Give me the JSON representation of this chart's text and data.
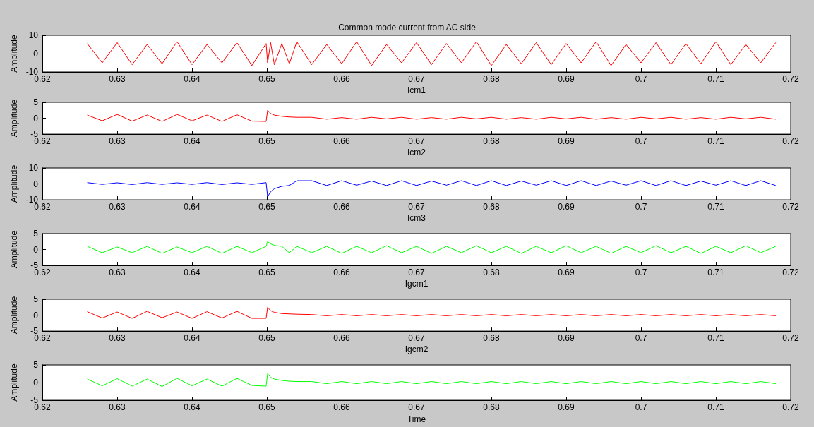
{
  "chart_data": [
    {
      "type": "line",
      "title": "Common mode current from AC side",
      "xlabel": "Icm1",
      "ylabel": "Amplitude",
      "marker": "none",
      "xlim": [
        0.62,
        0.72
      ],
      "xticks": [
        0.62,
        0.63,
        0.64,
        0.65,
        0.66,
        0.67,
        0.68,
        0.69,
        0.7,
        0.71,
        0.72
      ],
      "ylim": [
        -10,
        10
      ],
      "yticks": [
        -10,
        0,
        10
      ],
      "x": [
        0.626,
        0.628,
        0.63,
        0.632,
        0.634,
        0.636,
        0.638,
        0.64,
        0.642,
        0.644,
        0.646,
        0.648,
        0.6499,
        0.6501,
        0.6505,
        0.651,
        0.652,
        0.653,
        0.654,
        0.656,
        0.658,
        0.66,
        0.662,
        0.664,
        0.666,
        0.668,
        0.67,
        0.672,
        0.674,
        0.676,
        0.678,
        0.68,
        0.682,
        0.684,
        0.686,
        0.688,
        0.69,
        0.692,
        0.694,
        0.696,
        0.698,
        0.7,
        0.702,
        0.704,
        0.706,
        0.708,
        0.71,
        0.712,
        0.714,
        0.716,
        0.718
      ],
      "series": [
        {
          "color": "#ff0000",
          "values": [
            5.5,
            -5,
            6,
            -6,
            5,
            -5.5,
            6.5,
            -6,
            5,
            -5,
            6,
            -6.5,
            5.5,
            -5,
            6,
            -6,
            5.5,
            -5.5,
            6.5,
            -6,
            5,
            -5.5,
            6.5,
            -6.5,
            5,
            -5,
            6,
            -6,
            5.5,
            -5,
            6.5,
            -6.5,
            5,
            -5.5,
            6,
            -6,
            5.5,
            -5,
            6.5,
            -6.5,
            5,
            -5,
            6,
            -6,
            5.5,
            -5.5,
            6.5,
            -6,
            5,
            -5,
            6
          ]
        }
      ]
    },
    {
      "type": "line",
      "xlabel": "Icm2",
      "ylabel": "Amplitude",
      "marker": "none",
      "xlim": [
        0.62,
        0.72
      ],
      "xticks": [
        0.62,
        0.63,
        0.64,
        0.65,
        0.66,
        0.67,
        0.68,
        0.69,
        0.7,
        0.71,
        0.72
      ],
      "ylim": [
        -5,
        5
      ],
      "yticks": [
        -5,
        0,
        5
      ],
      "x": [
        0.626,
        0.628,
        0.63,
        0.632,
        0.634,
        0.636,
        0.638,
        0.64,
        0.642,
        0.644,
        0.646,
        0.648,
        0.6499,
        0.6501,
        0.6505,
        0.651,
        0.652,
        0.653,
        0.654,
        0.656,
        0.658,
        0.66,
        0.662,
        0.664,
        0.666,
        0.668,
        0.67,
        0.672,
        0.674,
        0.676,
        0.678,
        0.68,
        0.682,
        0.684,
        0.686,
        0.688,
        0.69,
        0.692,
        0.694,
        0.696,
        0.698,
        0.7,
        0.702,
        0.704,
        0.706,
        0.708,
        0.71,
        0.712,
        0.714,
        0.716,
        0.718
      ],
      "series": [
        {
          "color": "#ff0000",
          "values": [
            1,
            -0.8,
            1.2,
            -0.9,
            1,
            -1,
            1.2,
            -0.8,
            1,
            -1,
            1.1,
            -0.9,
            -1,
            2.5,
            1.5,
            1,
            0.6,
            0.4,
            0.3,
            0.3,
            -0.3,
            0.2,
            -0.3,
            0.3,
            -0.2,
            0.3,
            -0.3,
            0.2,
            -0.3,
            0.3,
            -0.2,
            0.3,
            -0.3,
            0.2,
            -0.3,
            0.3,
            -0.2,
            0.3,
            -0.3,
            0.2,
            -0.3,
            0.3,
            -0.2,
            0.3,
            -0.3,
            0.2,
            -0.3,
            0.3,
            -0.2,
            0.3,
            -0.3
          ]
        }
      ]
    },
    {
      "type": "line",
      "xlabel": "Icm3",
      "ylabel": "Amplitude",
      "marker": "none",
      "xlim": [
        0.62,
        0.72
      ],
      "xticks": [
        0.62,
        0.63,
        0.64,
        0.65,
        0.66,
        0.67,
        0.68,
        0.69,
        0.7,
        0.71,
        0.72
      ],
      "ylim": [
        -10,
        10
      ],
      "yticks": [
        -10,
        0,
        10
      ],
      "x": [
        0.626,
        0.628,
        0.63,
        0.632,
        0.634,
        0.636,
        0.638,
        0.64,
        0.642,
        0.644,
        0.646,
        0.648,
        0.6499,
        0.6501,
        0.6505,
        0.651,
        0.652,
        0.653,
        0.654,
        0.656,
        0.658,
        0.66,
        0.662,
        0.664,
        0.666,
        0.668,
        0.67,
        0.672,
        0.674,
        0.676,
        0.678,
        0.68,
        0.682,
        0.684,
        0.686,
        0.688,
        0.69,
        0.692,
        0.694,
        0.696,
        0.698,
        0.7,
        0.702,
        0.704,
        0.706,
        0.708,
        0.71,
        0.712,
        0.714,
        0.716,
        0.718
      ],
      "series": [
        {
          "color": "#0000ff",
          "values": [
            0.8,
            -0.3,
            0.7,
            -0.4,
            0.8,
            -0.3,
            0.7,
            -0.3,
            0.8,
            -0.4,
            0.7,
            -0.3,
            0.8,
            -8,
            -5,
            -3,
            -1.5,
            -1,
            2,
            2,
            -1,
            2,
            -0.8,
            1.8,
            -1,
            2,
            -1,
            1.8,
            -0.8,
            2,
            -1,
            2,
            -1,
            1.8,
            -0.8,
            2,
            -1,
            2,
            -1,
            1.8,
            -0.8,
            2,
            -1,
            2,
            -1,
            1.8,
            -0.8,
            2,
            -1,
            2,
            -1
          ]
        }
      ]
    },
    {
      "type": "line",
      "xlabel": "Igcm1",
      "ylabel": "Amplitude",
      "marker": "none",
      "xlim": [
        0.62,
        0.72
      ],
      "xticks": [
        0.62,
        0.63,
        0.64,
        0.65,
        0.66,
        0.67,
        0.68,
        0.69,
        0.7,
        0.71,
        0.72
      ],
      "ylim": [
        -5,
        5
      ],
      "yticks": [
        -5,
        0,
        5
      ],
      "x": [
        0.626,
        0.628,
        0.63,
        0.632,
        0.634,
        0.636,
        0.638,
        0.64,
        0.642,
        0.644,
        0.646,
        0.648,
        0.6499,
        0.6501,
        0.6505,
        0.651,
        0.652,
        0.653,
        0.654,
        0.656,
        0.658,
        0.66,
        0.662,
        0.664,
        0.666,
        0.668,
        0.67,
        0.672,
        0.674,
        0.676,
        0.678,
        0.68,
        0.682,
        0.684,
        0.686,
        0.688,
        0.69,
        0.692,
        0.694,
        0.696,
        0.698,
        0.7,
        0.702,
        0.704,
        0.706,
        0.708,
        0.71,
        0.712,
        0.714,
        0.716,
        0.718
      ],
      "series": [
        {
          "color": "#00ff00",
          "values": [
            1,
            -1,
            0.8,
            -1,
            1,
            -1.2,
            0.8,
            -1,
            1,
            -1.2,
            1,
            -1,
            1,
            2.5,
            1.8,
            1.3,
            1,
            -1,
            1,
            -1,
            1,
            -1.2,
            1,
            -1,
            1.2,
            -1,
            1,
            -1.2,
            1,
            -1,
            1.2,
            -1,
            1,
            -1.2,
            1,
            -1,
            1.2,
            -1,
            1,
            -1.2,
            1,
            -1,
            1.2,
            -1,
            1,
            -1.2,
            1,
            -1,
            1.2,
            -1,
            1
          ]
        }
      ]
    },
    {
      "type": "line",
      "xlabel": "Igcm2",
      "ylabel": "Amplitude",
      "marker": "none",
      "xlim": [
        0.62,
        0.72
      ],
      "xticks": [
        0.62,
        0.63,
        0.64,
        0.65,
        0.66,
        0.67,
        0.68,
        0.69,
        0.7,
        0.71,
        0.72
      ],
      "ylim": [
        -5,
        5
      ],
      "yticks": [
        -5,
        0,
        5
      ],
      "x": [
        0.626,
        0.628,
        0.63,
        0.632,
        0.634,
        0.636,
        0.638,
        0.64,
        0.642,
        0.644,
        0.646,
        0.648,
        0.6499,
        0.6501,
        0.6505,
        0.651,
        0.652,
        0.653,
        0.654,
        0.656,
        0.658,
        0.66,
        0.662,
        0.664,
        0.666,
        0.668,
        0.67,
        0.672,
        0.674,
        0.676,
        0.678,
        0.68,
        0.682,
        0.684,
        0.686,
        0.688,
        0.69,
        0.692,
        0.694,
        0.696,
        0.698,
        0.7,
        0.702,
        0.704,
        0.706,
        0.708,
        0.71,
        0.712,
        0.714,
        0.716,
        0.718
      ],
      "series": [
        {
          "color": "#ff0000",
          "values": [
            1.1,
            -0.9,
            1,
            -1,
            1.2,
            -0.8,
            1,
            -1,
            1.1,
            -0.9,
            1.2,
            -1,
            -1,
            2.5,
            1.4,
            0.9,
            0.5,
            0.4,
            0.3,
            0.2,
            -0.2,
            0.2,
            -0.2,
            0.2,
            -0.2,
            0.2,
            -0.2,
            0.2,
            -0.2,
            0.2,
            -0.2,
            0.2,
            -0.2,
            0.2,
            -0.2,
            0.2,
            -0.2,
            0.2,
            -0.2,
            0.2,
            -0.2,
            0.2,
            -0.2,
            0.2,
            -0.2,
            0.2,
            -0.2,
            0.2,
            -0.2,
            0.2,
            -0.2
          ]
        }
      ]
    },
    {
      "type": "line",
      "xlabel": "Time",
      "ylabel": "Amplitude",
      "marker": "none",
      "xlim": [
        0.62,
        0.72
      ],
      "xticks": [
        0.62,
        0.63,
        0.64,
        0.65,
        0.66,
        0.67,
        0.68,
        0.69,
        0.7,
        0.71,
        0.72
      ],
      "ylim": [
        -5,
        5
      ],
      "yticks": [
        -5,
        0,
        5
      ],
      "x": [
        0.626,
        0.628,
        0.63,
        0.632,
        0.634,
        0.636,
        0.638,
        0.64,
        0.642,
        0.644,
        0.646,
        0.648,
        0.6499,
        0.6501,
        0.6505,
        0.651,
        0.652,
        0.653,
        0.654,
        0.656,
        0.658,
        0.66,
        0.662,
        0.664,
        0.666,
        0.668,
        0.67,
        0.672,
        0.674,
        0.676,
        0.678,
        0.68,
        0.682,
        0.684,
        0.686,
        0.688,
        0.69,
        0.692,
        0.694,
        0.696,
        0.698,
        0.7,
        0.702,
        0.704,
        0.706,
        0.708,
        0.71,
        0.712,
        0.714,
        0.716,
        0.718
      ],
      "series": [
        {
          "color": "#00ff00",
          "values": [
            1,
            -0.9,
            1.1,
            -1,
            1,
            -1.1,
            1.2,
            -0.9,
            1,
            -1,
            1.2,
            -0.8,
            -1,
            2.5,
            1.5,
            1,
            0.6,
            0.4,
            0.3,
            0.3,
            -0.3,
            0.3,
            -0.3,
            0.3,
            -0.3,
            0.3,
            -0.3,
            0.3,
            -0.3,
            0.3,
            -0.3,
            0.3,
            -0.3,
            0.3,
            -0.3,
            0.3,
            -0.3,
            0.3,
            -0.3,
            0.3,
            -0.3,
            0.3,
            -0.3,
            0.3,
            -0.3,
            0.3,
            -0.3,
            0.3,
            -0.3,
            0.3,
            -0.3
          ]
        }
      ]
    }
  ]
}
